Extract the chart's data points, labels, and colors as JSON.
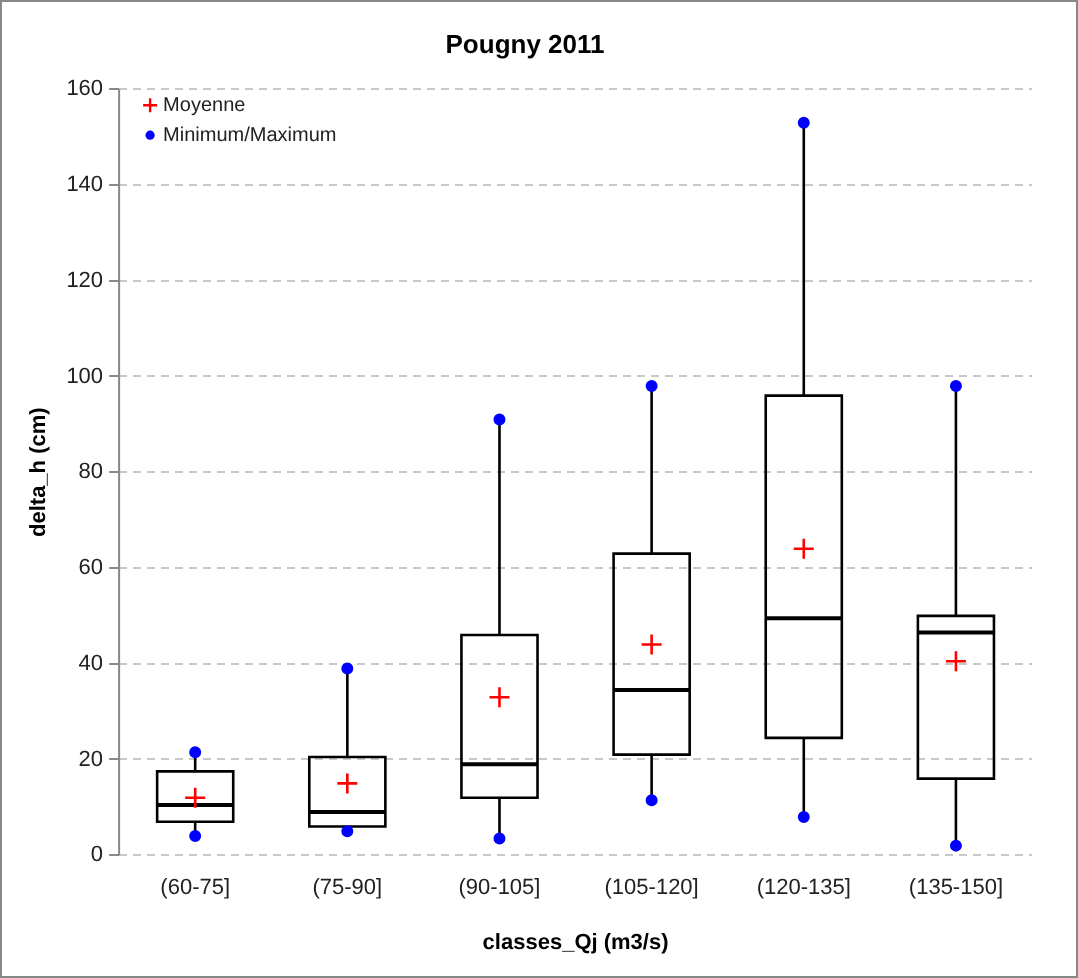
{
  "chart_data": {
    "type": "box",
    "title": "Pougny 2011",
    "xlabel": "classes_Qj (m3/s)",
    "ylabel": "delta_h (cm)",
    "categories": [
      "(60-75]",
      "(75-90]",
      "(90-105]",
      "(105-120]",
      "(120-135]",
      "(135-150]"
    ],
    "ylim": [
      0,
      160
    ],
    "yticks": [
      0,
      20,
      40,
      60,
      80,
      100,
      120,
      140,
      160
    ],
    "grid": "y",
    "legend": "top left",
    "series": [
      {
        "color": "#000000",
        "boxes": [
          {
            "low": 4,
            "q1": 7,
            "median": 10.5,
            "q3": 17.5,
            "high": 21.5
          },
          {
            "low": 5,
            "q1": 6,
            "median": 9,
            "q3": 20.5,
            "high": 39
          },
          {
            "low": 3.5,
            "q1": 12,
            "median": 19,
            "q3": 46,
            "high": 91
          },
          {
            "low": 11.5,
            "q1": 21,
            "median": 34.5,
            "q3": 63,
            "high": 98
          },
          {
            "low": 8,
            "q1": 24.5,
            "median": 49.5,
            "q3": 96,
            "high": 153
          },
          {
            "low": 2,
            "q1": 16,
            "median": 46.5,
            "q3": 50,
            "high": 98
          }
        ]
      },
      {
        "type": "scatter",
        "name": "Moyenne",
        "color": "#ff0000",
        "marker": "cross",
        "x": [
          "(60-75]",
          "(75-90]",
          "(90-105]",
          "(105-120]",
          "(120-135]",
          "(135-150]"
        ],
        "values": [
          12,
          15,
          33,
          44,
          64,
          40.5
        ]
      },
      {
        "type": "scatter",
        "name": "Minimum/Maximum",
        "color": "#0000ff",
        "marker": "circle",
        "x": [
          "(60-75]",
          "(75-90]",
          "(90-105]",
          "(105-120]",
          "(120-135]",
          "(135-150]",
          "(60-75]",
          "(75-90]",
          "(90-105]",
          "(105-120]",
          "(120-135]",
          "(135-150]"
        ],
        "values": [
          4,
          5,
          3.5,
          11.5,
          8,
          2,
          21.5,
          39,
          91,
          98,
          153,
          98
        ]
      }
    ]
  }
}
